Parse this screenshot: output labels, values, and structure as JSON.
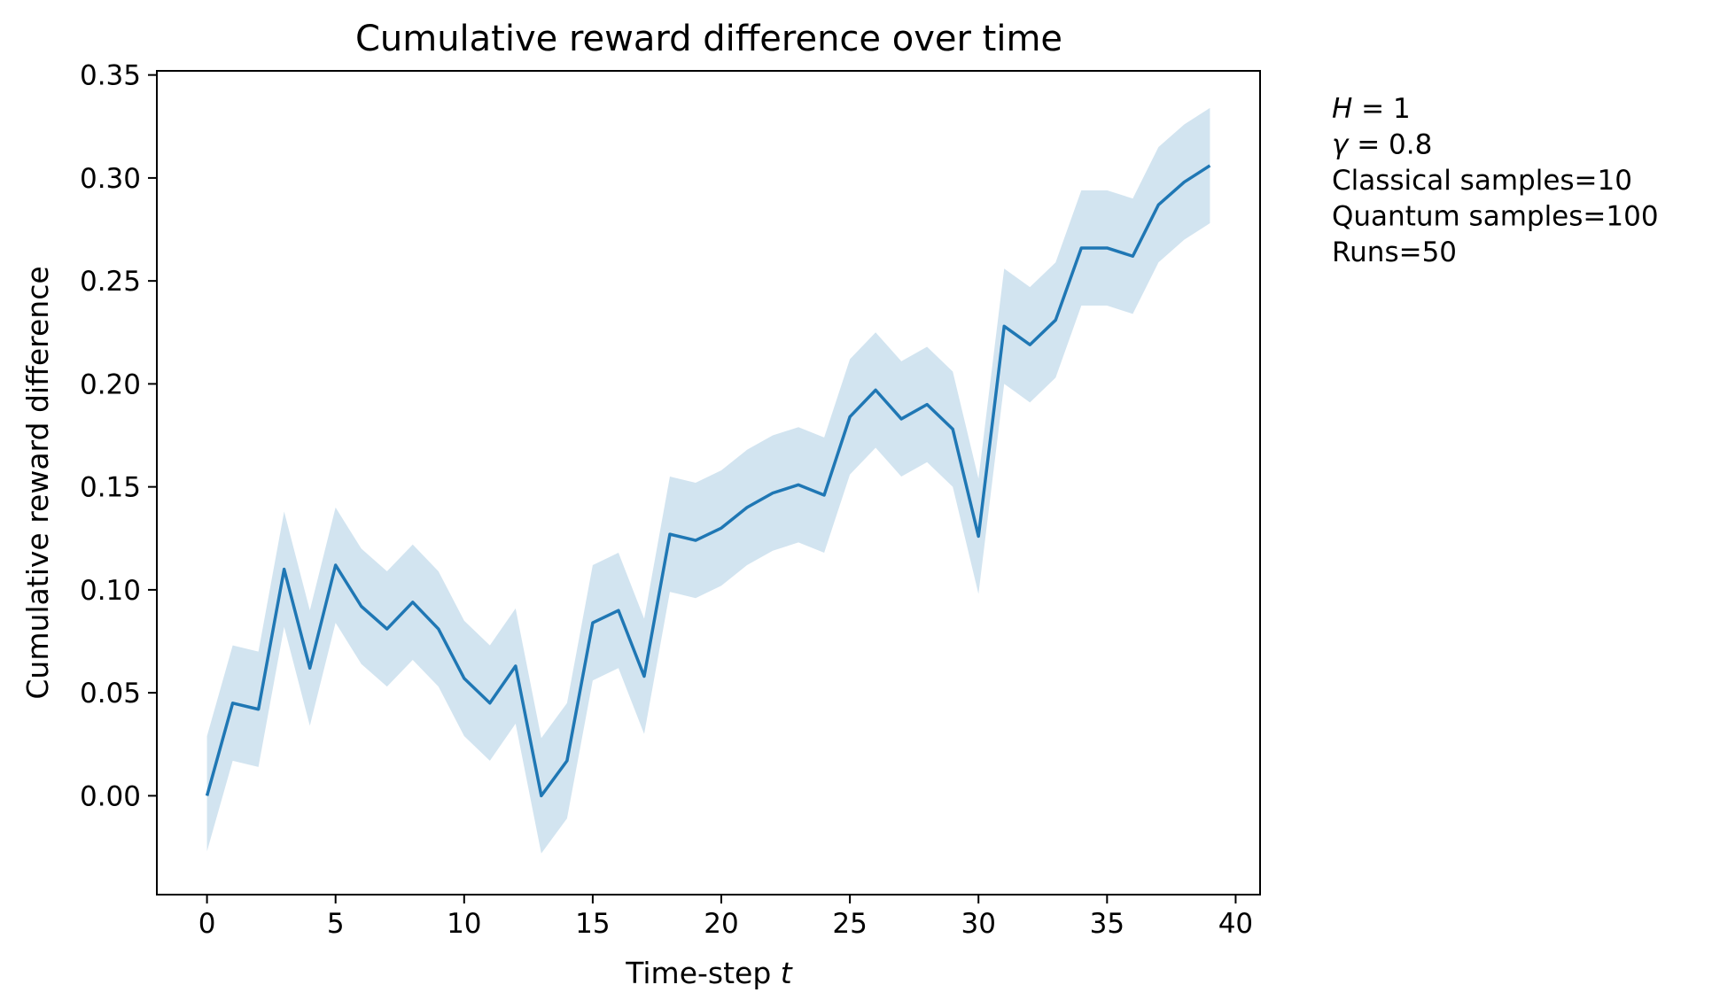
{
  "chart_data": {
    "type": "line",
    "title": "Cumulative reward difference over time",
    "xlabel": "Time-step",
    "xlabel_var": "t",
    "ylabel": "Cumulative reward difference",
    "xlim": [
      -1.95,
      40.95
    ],
    "ylim": [
      -0.048,
      0.352
    ],
    "xticks": [
      0,
      5,
      10,
      15,
      20,
      25,
      30,
      35,
      40
    ],
    "xtick_labels": [
      "0",
      "5",
      "10",
      "15",
      "20",
      "25",
      "30",
      "35",
      "40"
    ],
    "yticks": [
      0.0,
      0.05,
      0.1,
      0.15,
      0.2,
      0.25,
      0.3,
      0.35
    ],
    "ytick_labels": [
      "0.00",
      "0.05",
      "0.10",
      "0.15",
      "0.20",
      "0.25",
      "0.30",
      "0.35"
    ],
    "grid": false,
    "colors": {
      "line": "#1f77b4",
      "band": "#1f77b4",
      "band_opacity": 0.2
    },
    "series": [
      {
        "x": [
          0,
          1,
          2,
          3,
          4,
          5,
          6,
          7,
          8,
          9,
          10,
          11,
          12,
          13,
          14,
          15,
          16,
          17,
          18,
          19,
          20,
          21,
          22,
          23,
          24,
          25,
          26,
          27,
          28,
          29,
          30,
          31,
          32,
          33,
          34,
          35,
          36,
          37,
          38,
          39
        ],
        "values": [
          0.0,
          0.045,
          0.042,
          0.11,
          0.062,
          0.112,
          0.092,
          0.081,
          0.094,
          0.081,
          0.057,
          0.045,
          0.063,
          0.0,
          0.017,
          0.084,
          0.09,
          0.058,
          0.127,
          0.124,
          0.13,
          0.14,
          0.147,
          0.151,
          0.146,
          0.184,
          0.197,
          0.183,
          0.19,
          0.178,
          0.126,
          0.228,
          0.219,
          0.231,
          0.266,
          0.266,
          0.262,
          0.287,
          0.298,
          0.306
        ],
        "lower": [
          -0.027,
          0.017,
          0.014,
          0.082,
          0.034,
          0.084,
          0.064,
          0.053,
          0.066,
          0.053,
          0.029,
          0.017,
          0.035,
          -0.028,
          -0.011,
          0.056,
          0.062,
          0.03,
          0.099,
          0.096,
          0.102,
          0.112,
          0.119,
          0.123,
          0.118,
          0.156,
          0.169,
          0.155,
          0.162,
          0.15,
          0.098,
          0.2,
          0.191,
          0.203,
          0.238,
          0.238,
          0.234,
          0.259,
          0.27,
          0.278
        ],
        "upper": [
          0.029,
          0.073,
          0.07,
          0.138,
          0.09,
          0.14,
          0.12,
          0.109,
          0.122,
          0.109,
          0.085,
          0.073,
          0.091,
          0.028,
          0.045,
          0.112,
          0.118,
          0.086,
          0.155,
          0.152,
          0.158,
          0.168,
          0.175,
          0.179,
          0.174,
          0.212,
          0.225,
          0.211,
          0.218,
          0.206,
          0.154,
          0.256,
          0.247,
          0.259,
          0.294,
          0.294,
          0.29,
          0.315,
          0.326,
          0.334
        ]
      }
    ],
    "annotation": [
      {
        "italic": "H",
        "text": " = 1"
      },
      {
        "italic": "γ",
        "text": " = 0.8"
      },
      {
        "italic": "",
        "text": "Classical samples=10"
      },
      {
        "italic": "",
        "text": "Quantum samples=100"
      },
      {
        "italic": "",
        "text": "Runs=50"
      }
    ]
  }
}
